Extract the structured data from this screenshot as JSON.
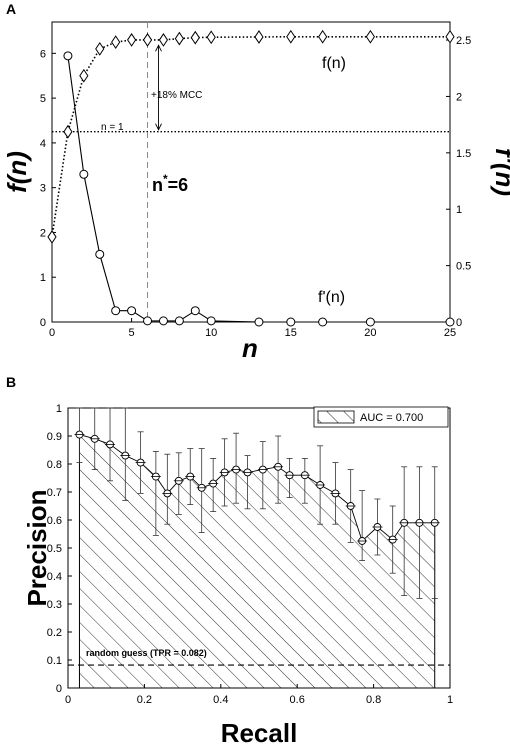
{
  "chart_data": [
    {
      "panel": "A",
      "type": "line",
      "xlabel": "n",
      "ylabel": "f(n)",
      "ylabel_right": "f'(n)",
      "xlim": [
        0,
        25
      ],
      "ylim": [
        0,
        6.7
      ],
      "ylim_right": [
        0,
        2.66
      ],
      "xticks": [
        "0",
        "5",
        "10",
        "15",
        "20",
        "25"
      ],
      "yticks": [
        "0",
        "1",
        "2",
        "3",
        "4",
        "5",
        "6"
      ],
      "yticks_right": [
        "0",
        "0.5",
        "1",
        "1.5",
        "2",
        "2.5"
      ],
      "series": [
        {
          "name": "f(n)",
          "axis": "left",
          "style": "dotted",
          "marker": "diamond",
          "x": [
            0,
            1,
            2,
            3,
            4,
            5,
            6,
            7,
            8,
            9,
            10,
            15,
            20,
            25
          ],
          "y": [
            1.9,
            4.25,
            5.5,
            6.1,
            6.25,
            6.3,
            6.3,
            6.3,
            6.33,
            6.35,
            6.36,
            6.37,
            6.37,
            6.37
          ],
          "marker_x": [
            0,
            1,
            2,
            3,
            4,
            5,
            6,
            7,
            8,
            9,
            10,
            13,
            15,
            17,
            20,
            25
          ]
        },
        {
          "name": "f'(n)",
          "axis": "right",
          "style": "solid",
          "marker": "circle",
          "x": [
            1,
            2,
            3,
            4,
            5,
            6,
            7,
            8,
            9,
            10,
            13,
            15,
            17,
            20,
            25
          ],
          "y": [
            2.36,
            1.31,
            0.6,
            0.1,
            0.1,
            0.01,
            0.01,
            0.01,
            0.1,
            0.01,
            0.0,
            0.0,
            0.0,
            0.0,
            0.0
          ]
        }
      ],
      "reference_line": {
        "label": "n = 1",
        "y": 4.25
      },
      "vline": {
        "x": 6
      },
      "annotations": {
        "nstar_base": "n",
        "nstar_sup": "*",
        "nstar_val": "=6",
        "mcc": "+18% MCC",
        "f_label": "f(n)",
        "fprime_label": "f'(n)"
      }
    },
    {
      "panel": "B",
      "type": "line",
      "xlabel": "Recall",
      "ylabel": "Precision",
      "xlim": [
        0,
        1
      ],
      "ylim": [
        0,
        1
      ],
      "xticks": [
        "0",
        "0.2",
        "0.4",
        "0.6",
        "0.8",
        "1"
      ],
      "yticks": [
        "0",
        "0.1",
        "0.2",
        "0.3",
        "0.4",
        "0.5",
        "0.6",
        "0.7",
        "0.8",
        "0.9",
        "1"
      ],
      "series": [
        {
          "marker": "circle",
          "area": "hatched",
          "x": [
            0.03,
            0.07,
            0.11,
            0.15,
            0.19,
            0.23,
            0.26,
            0.29,
            0.32,
            0.35,
            0.38,
            0.41,
            0.44,
            0.47,
            0.51,
            0.55,
            0.58,
            0.62,
            0.66,
            0.7,
            0.74,
            0.77,
            0.81,
            0.85,
            0.88,
            0.92,
            0.96
          ],
          "y": [
            0.905,
            0.89,
            0.87,
            0.83,
            0.805,
            0.755,
            0.695,
            0.74,
            0.755,
            0.715,
            0.73,
            0.77,
            0.78,
            0.77,
            0.78,
            0.79,
            0.76,
            0.76,
            0.725,
            0.695,
            0.65,
            0.525,
            0.575,
            0.53,
            0.59,
            0.59,
            0.59
          ],
          "err_hi": [
            0.1,
            0.11,
            0.13,
            0.17,
            0.11,
            0.09,
            0.14,
            0.1,
            0.1,
            0.14,
            0.09,
            0.12,
            0.13,
            0.06,
            0.1,
            0.11,
            0.06,
            0.06,
            0.14,
            0.11,
            0.13,
            0.18,
            0.1,
            0.12,
            0.2,
            0.2,
            0.2
          ],
          "err_lo": [
            0.1,
            0.11,
            0.13,
            0.16,
            0.11,
            0.21,
            0.11,
            0.12,
            0.1,
            0.16,
            0.1,
            0.12,
            0.12,
            0.13,
            0.14,
            0.13,
            0.08,
            0.1,
            0.14,
            0.11,
            0.13,
            0.07,
            0.1,
            0.12,
            0.26,
            0.27,
            0.27
          ]
        }
      ],
      "legend": {
        "label": "AUC = 0.700",
        "placement": "top-right"
      },
      "baseline": {
        "label": "random guess (TPR = 0.082)",
        "y": 0.082
      }
    }
  ],
  "panel_letters": [
    "A",
    "B"
  ]
}
